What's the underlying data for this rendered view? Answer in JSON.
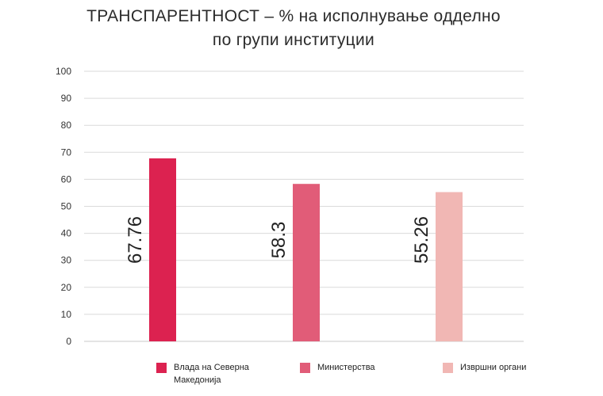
{
  "chart_data": {
    "type": "bar",
    "title_line1": "ТРАНСПАРЕНТНОСТ – % на исполнување одделно",
    "title_line2": "по групи институции",
    "categories": [
      "Влада на Северна Македонија",
      "Министерства",
      "Извршни органи"
    ],
    "values": [
      67.76,
      58.3,
      55.26
    ],
    "value_labels": [
      "67.76",
      "58.3",
      "55.26"
    ],
    "colors": [
      "#dc2250",
      "#e15c78",
      "#f1b7b4"
    ],
    "ylim": [
      0,
      100
    ],
    "yticks": [
      "0",
      "10",
      "20",
      "30",
      "40",
      "50",
      "60",
      "70",
      "80",
      "90",
      "100"
    ],
    "grid": true,
    "legend_position": "bottom"
  }
}
